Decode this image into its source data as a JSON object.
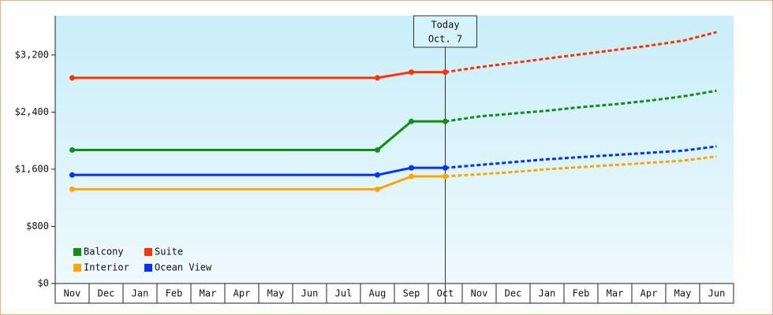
{
  "chart_data": {
    "type": "line",
    "categories": [
      "Nov",
      "Dec",
      "Jan",
      "Feb",
      "Mar",
      "Apr",
      "May",
      "Jun",
      "Jul",
      "Aug",
      "Sep",
      "Oct",
      "Nov",
      "Dec",
      "Jan",
      "Feb",
      "Mar",
      "Apr",
      "May",
      "Jun"
    ],
    "series": [
      {
        "name": "Balcony",
        "color": "#109010",
        "values": [
          1870,
          1870,
          1870,
          1870,
          1870,
          1870,
          1870,
          1870,
          1870,
          1870,
          2270,
          2270,
          null,
          null,
          null,
          null,
          null,
          null,
          null,
          null
        ],
        "projected": [
          null,
          null,
          null,
          null,
          null,
          null,
          null,
          null,
          null,
          null,
          null,
          2270,
          2340,
          2380,
          2420,
          2470,
          2510,
          2560,
          2620,
          2700
        ]
      },
      {
        "name": "Suite",
        "color": "#ff3300",
        "values": [
          2880,
          2880,
          2880,
          2880,
          2880,
          2880,
          2880,
          2880,
          2880,
          2880,
          2960,
          2960,
          null,
          null,
          null,
          null,
          null,
          null,
          null,
          null
        ],
        "projected": [
          null,
          null,
          null,
          null,
          null,
          null,
          null,
          null,
          null,
          null,
          null,
          2960,
          3030,
          3090,
          3150,
          3210,
          3270,
          3330,
          3400,
          3520
        ]
      },
      {
        "name": "Interior",
        "color": "#ffa500",
        "values": [
          1320,
          1320,
          1320,
          1320,
          1320,
          1320,
          1320,
          1320,
          1320,
          1320,
          1500,
          1500,
          null,
          null,
          null,
          null,
          null,
          null,
          null,
          null
        ],
        "projected": [
          null,
          null,
          null,
          null,
          null,
          null,
          null,
          null,
          null,
          null,
          null,
          1500,
          1530,
          1560,
          1600,
          1630,
          1660,
          1690,
          1720,
          1780
        ]
      },
      {
        "name": "Ocean View",
        "color": "#0033ff",
        "values": [
          1520,
          1520,
          1520,
          1520,
          1520,
          1520,
          1520,
          1520,
          1520,
          1520,
          1620,
          1620,
          null,
          null,
          null,
          null,
          null,
          null,
          null,
          null
        ],
        "projected": [
          null,
          null,
          null,
          null,
          null,
          null,
          null,
          null,
          null,
          null,
          null,
          1620,
          1660,
          1700,
          1740,
          1770,
          1800,
          1830,
          1860,
          1920
        ]
      }
    ],
    "ylim": [
      0,
      3750
    ],
    "yticks": [
      {
        "value": 0,
        "label": "$0"
      },
      {
        "value": 800,
        "label": "$800"
      },
      {
        "value": 1600,
        "label": "$1,600"
      },
      {
        "value": 2400,
        "label": "$2,400"
      },
      {
        "value": 3200,
        "label": "$3,200"
      }
    ],
    "annotation": [
      "Today",
      "Oct. 7"
    ],
    "legend": "lower left"
  }
}
